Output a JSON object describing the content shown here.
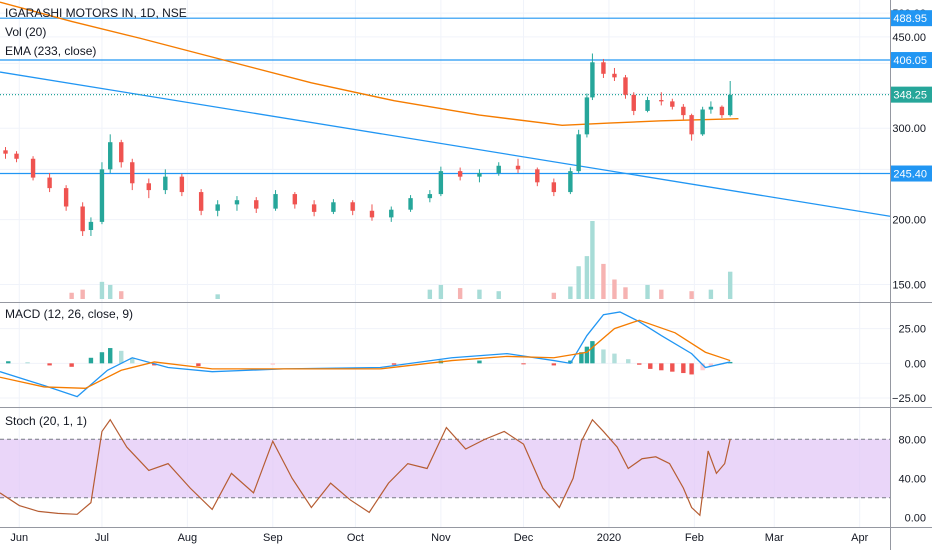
{
  "header": {
    "symbol_line": "IGARASHI MOTORS IN, 1D, NSE",
    "vol_label": "Vol (20)",
    "ema_label": "EMA (233, close)"
  },
  "colors": {
    "up": "#26a69a",
    "down": "#ef5350",
    "vol_up": "#a7dcd7",
    "vol_down": "#f6b3b2",
    "ema": "#f57c00",
    "level_line": "#2196f3",
    "trendline": "#2196f3",
    "macd_line": "#2196f3",
    "signal_line": "#f57c00",
    "stoch_line": "#b65d33",
    "stoch_band": "#e1c4f7",
    "price_tag_bg": "#2196f3",
    "last_tag_bg": "#26a69a"
  },
  "chart_data": [
    {
      "type": "candlestick",
      "panel": "price",
      "title": "IGARASHI MOTORS IN, 1D, NSE",
      "scale": "log",
      "y_ticks": [
        150,
        200,
        250,
        300,
        350,
        400,
        450,
        500
      ],
      "y_tick_labels": [
        "150.00",
        "200.00",
        "250.00",
        "300.00",
        "350.00",
        "400.00",
        "450.00",
        "500.00"
      ],
      "x_ticks": [
        {
          "date": "2019-06-01",
          "label": "Jun"
        },
        {
          "date": "2019-07-01",
          "label": "Jul"
        },
        {
          "date": "2019-08-01",
          "label": "Aug"
        },
        {
          "date": "2019-09-01",
          "label": "Sep"
        },
        {
          "date": "2019-10-01",
          "label": "Oct"
        },
        {
          "date": "2019-11-01",
          "label": "Nov"
        },
        {
          "date": "2019-12-01",
          "label": "Dec"
        },
        {
          "date": "2020-01-01",
          "label": "2020"
        },
        {
          "date": "2020-02-01",
          "label": "Feb"
        },
        {
          "date": "2020-03-01",
          "label": "Mar"
        },
        {
          "date": "2020-04-01",
          "label": "Apr"
        }
      ],
      "x_range": [
        "2019-05-25",
        "2020-04-12"
      ],
      "horizontal_levels": [
        {
          "value": 488.95,
          "label": "488.95",
          "style": "solid"
        },
        {
          "value": 406.05,
          "label": "406.05",
          "style": "solid"
        },
        {
          "value": 348.25,
          "label": "348.25",
          "style": "dotted",
          "last_price": true
        },
        {
          "value": 245.4,
          "label": "245.40",
          "style": "solid"
        }
      ],
      "trendline": {
        "start": {
          "date": "2019-05-25",
          "value": 385
        },
        "end": {
          "date": "2020-04-12",
          "value": 203
        }
      },
      "ema": {
        "name": "EMA (233, close)",
        "points": [
          [
            "2019-05-25",
            525
          ],
          [
            "2019-06-20",
            482
          ],
          [
            "2019-07-15",
            447
          ],
          [
            "2019-08-15",
            405
          ],
          [
            "2019-09-15",
            367
          ],
          [
            "2019-10-15",
            339
          ],
          [
            "2019-11-15",
            318
          ],
          [
            "2019-12-15",
            304
          ],
          [
            "2020-01-01",
            307
          ],
          [
            "2020-01-20",
            310
          ],
          [
            "2020-02-17",
            313
          ]
        ]
      },
      "candles": [
        [
          "2019-05-27",
          272,
          276,
          262,
          268
        ],
        [
          "2019-05-31",
          268,
          271,
          258,
          262
        ],
        [
          "2019-06-06",
          262,
          265,
          238,
          241
        ],
        [
          "2019-06-12",
          241,
          246,
          226,
          230
        ],
        [
          "2019-06-18",
          230,
          233,
          208,
          212
        ],
        [
          "2019-06-24",
          212,
          216,
          186,
          190
        ],
        [
          "2019-06-27",
          191,
          202,
          186,
          198
        ],
        [
          "2019-07-01",
          198,
          258,
          196,
          250
        ],
        [
          "2019-07-04",
          250,
          292,
          246,
          282
        ],
        [
          "2019-07-08",
          282,
          285,
          252,
          258
        ],
        [
          "2019-07-12",
          258,
          262,
          228,
          235
        ],
        [
          "2019-07-18",
          235,
          240,
          220,
          228
        ],
        [
          "2019-07-24",
          228,
          250,
          224,
          242
        ],
        [
          "2019-07-30",
          242,
          245,
          222,
          226
        ],
        [
          "2019-08-06",
          226,
          229,
          204,
          208
        ],
        [
          "2019-08-12",
          208,
          218,
          203,
          214
        ],
        [
          "2019-08-19",
          214,
          222,
          208,
          218
        ],
        [
          "2019-08-26",
          218,
          221,
          206,
          210
        ],
        [
          "2019-09-02",
          210,
          228,
          208,
          224
        ],
        [
          "2019-09-09",
          224,
          226,
          210,
          214
        ],
        [
          "2019-09-16",
          214,
          218,
          203,
          207
        ],
        [
          "2019-09-23",
          207,
          219,
          205,
          216
        ],
        [
          "2019-09-30",
          216,
          218,
          204,
          208
        ],
        [
          "2019-10-07",
          208,
          214,
          199,
          202
        ],
        [
          "2019-10-14",
          202,
          212,
          198,
          209
        ],
        [
          "2019-10-21",
          209,
          223,
          207,
          220
        ],
        [
          "2019-10-28",
          220,
          228,
          216,
          224
        ],
        [
          "2019-11-01",
          224,
          253,
          222,
          248
        ],
        [
          "2019-11-08",
          248,
          252,
          238,
          242
        ],
        [
          "2019-11-15",
          242,
          250,
          236,
          246
        ],
        [
          "2019-11-22",
          246,
          258,
          243,
          254
        ],
        [
          "2019-11-29",
          254,
          262,
          246,
          250
        ],
        [
          "2019-12-06",
          250,
          252,
          232,
          236
        ],
        [
          "2019-12-12",
          236,
          240,
          222,
          226
        ],
        [
          "2019-12-18",
          226,
          252,
          224,
          248
        ],
        [
          "2019-12-21",
          248,
          298,
          246,
          292
        ],
        [
          "2019-12-24",
          292,
          350,
          288,
          344
        ],
        [
          "2019-12-26",
          344,
          418,
          340,
          402
        ],
        [
          "2019-12-30",
          402,
          408,
          375,
          382
        ],
        [
          "2020-01-03",
          382,
          392,
          370,
          376
        ],
        [
          "2020-01-07",
          376,
          380,
          342,
          348
        ],
        [
          "2020-01-10",
          348,
          352,
          318,
          324
        ],
        [
          "2020-01-15",
          324,
          345,
          322,
          340
        ],
        [
          "2020-01-20",
          340,
          352,
          332,
          338
        ],
        [
          "2020-01-24",
          338,
          342,
          326,
          330
        ],
        [
          "2020-01-28",
          330,
          334,
          312,
          318
        ],
        [
          "2020-01-31",
          318,
          320,
          284,
          292
        ],
        [
          "2020-02-04",
          292,
          330,
          290,
          326
        ],
        [
          "2020-02-07",
          326,
          338,
          320,
          330
        ],
        [
          "2020-02-11",
          330,
          332,
          314,
          318
        ],
        [
          "2020-02-14",
          318,
          370,
          316,
          348
        ]
      ]
    },
    {
      "type": "bar",
      "panel": "volume",
      "name": "Vol (20)",
      "note": "relative volume units, axis not printed",
      "bars": [
        [
          "2019-06-20",
          0.08,
          "down"
        ],
        [
          "2019-06-24",
          0.12,
          "down"
        ],
        [
          "2019-07-01",
          0.22,
          "up"
        ],
        [
          "2019-07-04",
          0.18,
          "up"
        ],
        [
          "2019-07-08",
          0.1,
          "down"
        ],
        [
          "2019-08-12",
          0.06,
          "up"
        ],
        [
          "2019-10-28",
          0.12,
          "up"
        ],
        [
          "2019-11-01",
          0.18,
          "up"
        ],
        [
          "2019-11-08",
          0.14,
          "down"
        ],
        [
          "2019-11-15",
          0.12,
          "up"
        ],
        [
          "2019-11-22",
          0.1,
          "up"
        ],
        [
          "2019-12-12",
          0.08,
          "down"
        ],
        [
          "2019-12-18",
          0.16,
          "up"
        ],
        [
          "2019-12-21",
          0.42,
          "up"
        ],
        [
          "2019-12-24",
          0.55,
          "up"
        ],
        [
          "2019-12-26",
          1.0,
          "up"
        ],
        [
          "2019-12-30",
          0.45,
          "down"
        ],
        [
          "2020-01-03",
          0.25,
          "down"
        ],
        [
          "2020-01-07",
          0.15,
          "down"
        ],
        [
          "2020-01-15",
          0.18,
          "up"
        ],
        [
          "2020-01-20",
          0.12,
          "down"
        ],
        [
          "2020-01-31",
          0.1,
          "down"
        ],
        [
          "2020-02-07",
          0.12,
          "up"
        ],
        [
          "2020-02-14",
          0.35,
          "up"
        ]
      ]
    },
    {
      "type": "line",
      "panel": "macd",
      "title": "MACD (12, 26, close, 9)",
      "ylim": [
        -30,
        42
      ],
      "y_ticks": [
        25,
        0,
        -25
      ],
      "y_tick_labels": [
        "25.00",
        "0.00",
        "−25.00"
      ],
      "series": [
        {
          "name": "MACD",
          "values": [
            [
              "2019-05-25",
              -6
            ],
            [
              "2019-06-10",
              -16
            ],
            [
              "2019-06-22",
              -24
            ],
            [
              "2019-07-03",
              -5
            ],
            [
              "2019-07-12",
              4
            ],
            [
              "2019-07-25",
              -3
            ],
            [
              "2019-08-10",
              -6
            ],
            [
              "2019-09-05",
              -4
            ],
            [
              "2019-10-10",
              -3
            ],
            [
              "2019-11-05",
              4
            ],
            [
              "2019-11-25",
              7
            ],
            [
              "2019-12-12",
              2
            ],
            [
              "2019-12-18",
              0
            ],
            [
              "2019-12-24",
              20
            ],
            [
              "2019-12-30",
              35
            ],
            [
              "2020-01-05",
              37
            ],
            [
              "2020-01-12",
              30
            ],
            [
              "2020-01-20",
              20
            ],
            [
              "2020-01-31",
              7
            ],
            [
              "2020-02-05",
              -3
            ],
            [
              "2020-02-14",
              1
            ]
          ]
        },
        {
          "name": "Signal",
          "values": [
            [
              "2019-05-25",
              -10
            ],
            [
              "2019-06-10",
              -17
            ],
            [
              "2019-06-25",
              -18
            ],
            [
              "2019-07-08",
              -5
            ],
            [
              "2019-07-20",
              1
            ],
            [
              "2019-08-10",
              -4
            ],
            [
              "2019-09-05",
              -4
            ],
            [
              "2019-10-10",
              -4
            ],
            [
              "2019-11-05",
              2
            ],
            [
              "2019-11-25",
              5
            ],
            [
              "2019-12-12",
              4
            ],
            [
              "2019-12-24",
              8
            ],
            [
              "2020-01-03",
              25
            ],
            [
              "2020-01-12",
              31
            ],
            [
              "2020-01-25",
              22
            ],
            [
              "2020-02-05",
              8
            ],
            [
              "2020-02-14",
              2
            ]
          ]
        }
      ],
      "histogram": [
        [
          "2019-05-28",
          1.5
        ],
        [
          "2019-06-04",
          0.8
        ],
        [
          "2019-06-12",
          -1.5
        ],
        [
          "2019-06-20",
          -2.5
        ],
        [
          "2019-06-27",
          4
        ],
        [
          "2019-07-01",
          8
        ],
        [
          "2019-07-04",
          11
        ],
        [
          "2019-07-08",
          9
        ],
        [
          "2019-07-12",
          4
        ],
        [
          "2019-07-20",
          -1.5
        ],
        [
          "2019-08-05",
          -2
        ],
        [
          "2019-09-01",
          -1
        ],
        [
          "2019-10-15",
          -1
        ],
        [
          "2019-11-01",
          2
        ],
        [
          "2019-11-15",
          2
        ],
        [
          "2019-12-01",
          -0.5
        ],
        [
          "2019-12-12",
          -1.5
        ],
        [
          "2019-12-18",
          2
        ],
        [
          "2019-12-22",
          8
        ],
        [
          "2019-12-24",
          12
        ],
        [
          "2019-12-26",
          16
        ],
        [
          "2019-12-30",
          10
        ],
        [
          "2020-01-03",
          7
        ],
        [
          "2020-01-08",
          3
        ],
        [
          "2020-01-12",
          -1
        ],
        [
          "2020-01-16",
          -4
        ],
        [
          "2020-01-20",
          -5
        ],
        [
          "2020-01-24",
          -6
        ],
        [
          "2020-01-28",
          -7
        ],
        [
          "2020-01-31",
          -8
        ],
        [
          "2020-02-04",
          -5
        ],
        [
          "2020-02-07",
          -2
        ],
        [
          "2020-02-11",
          -0.5
        ],
        [
          "2020-02-14",
          1
        ]
      ]
    },
    {
      "type": "line",
      "panel": "stoch",
      "title": "Stoch (20, 1, 1)",
      "ylim": [
        -10,
        110
      ],
      "y_ticks": [
        80,
        40,
        0
      ],
      "y_tick_labels": [
        "80.00",
        "40.00",
        "0.00"
      ],
      "band": [
        20,
        80
      ],
      "series": [
        {
          "name": "%K",
          "values": [
            [
              "2019-05-25",
              25
            ],
            [
              "2019-06-01",
              12
            ],
            [
              "2019-06-08",
              6
            ],
            [
              "2019-06-15",
              4
            ],
            [
              "2019-06-22",
              3
            ],
            [
              "2019-06-27",
              15
            ],
            [
              "2019-07-01",
              88
            ],
            [
              "2019-07-04",
              100
            ],
            [
              "2019-07-10",
              72
            ],
            [
              "2019-07-18",
              48
            ],
            [
              "2019-07-25",
              55
            ],
            [
              "2019-08-02",
              30
            ],
            [
              "2019-08-10",
              8
            ],
            [
              "2019-08-17",
              45
            ],
            [
              "2019-08-25",
              25
            ],
            [
              "2019-09-01",
              78
            ],
            [
              "2019-09-08",
              40
            ],
            [
              "2019-09-15",
              10
            ],
            [
              "2019-09-22",
              35
            ],
            [
              "2019-09-29",
              18
            ],
            [
              "2019-10-06",
              5
            ],
            [
              "2019-10-13",
              35
            ],
            [
              "2019-10-20",
              55
            ],
            [
              "2019-10-27",
              50
            ],
            [
              "2019-11-03",
              92
            ],
            [
              "2019-11-10",
              70
            ],
            [
              "2019-11-17",
              80
            ],
            [
              "2019-11-24",
              88
            ],
            [
              "2019-12-01",
              75
            ],
            [
              "2019-12-08",
              30
            ],
            [
              "2019-12-14",
              10
            ],
            [
              "2019-12-19",
              40
            ],
            [
              "2019-12-22",
              78
            ],
            [
              "2019-12-26",
              100
            ],
            [
              "2019-12-30",
              88
            ],
            [
              "2020-01-04",
              72
            ],
            [
              "2020-01-08",
              50
            ],
            [
              "2020-01-13",
              60
            ],
            [
              "2020-01-18",
              62
            ],
            [
              "2020-01-23",
              55
            ],
            [
              "2020-01-28",
              30
            ],
            [
              "2020-01-31",
              10
            ],
            [
              "2020-02-03",
              2
            ],
            [
              "2020-02-06",
              68
            ],
            [
              "2020-02-09",
              45
            ],
            [
              "2020-02-12",
              55
            ],
            [
              "2020-02-14",
              80
            ]
          ]
        }
      ]
    }
  ]
}
